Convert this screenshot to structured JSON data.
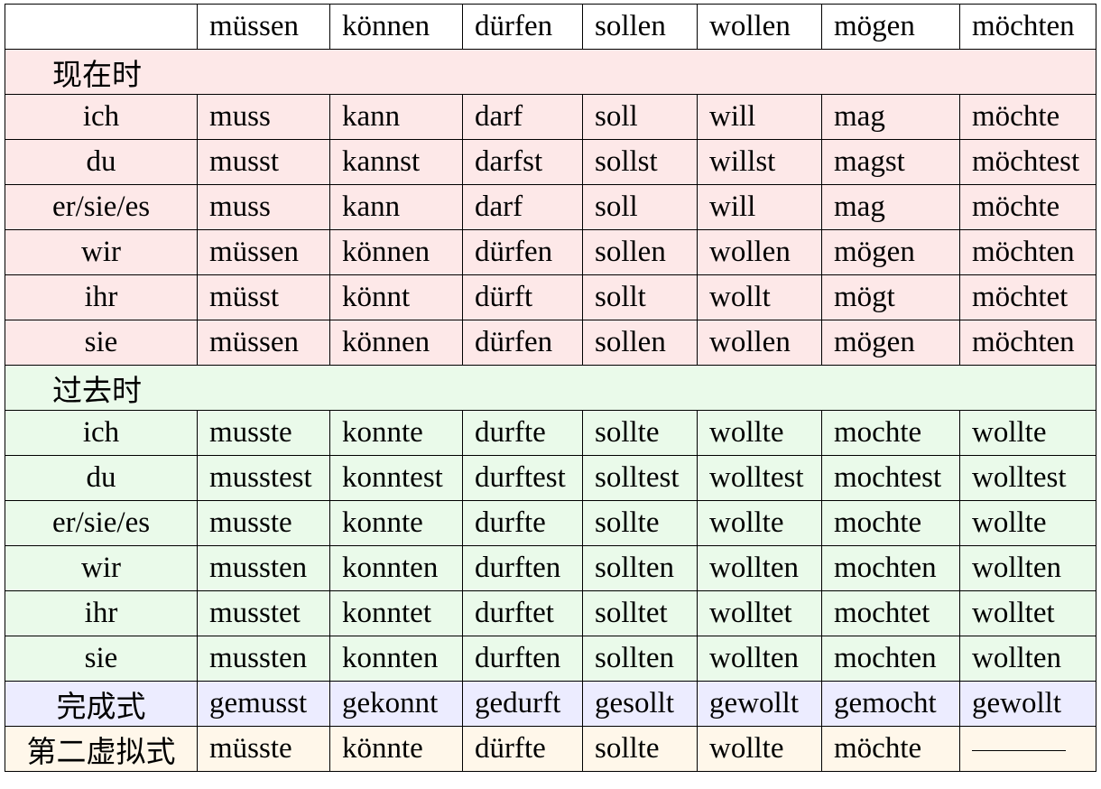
{
  "header": {
    "corner": "",
    "verbs": [
      "müssen",
      "können",
      "dürfen",
      "sollen",
      "wollen",
      "mögen",
      "möchten"
    ]
  },
  "present": {
    "label": "现在时",
    "rows": [
      {
        "pronoun": "ich",
        "forms": [
          "muss",
          "kann",
          "darf",
          "soll",
          "will",
          "mag",
          "möchte"
        ]
      },
      {
        "pronoun": "du",
        "forms": [
          "musst",
          "kannst",
          "darfst",
          "sollst",
          "willst",
          "magst",
          "möchtest"
        ]
      },
      {
        "pronoun": "er/sie/es",
        "forms": [
          "muss",
          "kann",
          "darf",
          "soll",
          "will",
          "mag",
          "möchte"
        ]
      },
      {
        "pronoun": "wir",
        "forms": [
          "müssen",
          "können",
          "dürfen",
          "sollen",
          "wollen",
          "mögen",
          "möchten"
        ]
      },
      {
        "pronoun": "ihr",
        "forms": [
          "müsst",
          "könnt",
          "dürft",
          "sollt",
          "wollt",
          "mögt",
          "möchtet"
        ]
      },
      {
        "pronoun": "sie",
        "forms": [
          "müssen",
          "können",
          "dürfen",
          "sollen",
          "wollen",
          "mögen",
          "möchten"
        ]
      }
    ]
  },
  "past": {
    "label": "过去时",
    "rows": [
      {
        "pronoun": "ich",
        "forms": [
          "musste",
          "konnte",
          "durfte",
          "sollte",
          "wollte",
          "mochte",
          "wollte"
        ]
      },
      {
        "pronoun": "du",
        "forms": [
          "musstest",
          "konntest",
          "durftest",
          "solltest",
          "wolltest",
          "mochtest",
          "wolltest"
        ]
      },
      {
        "pronoun": "er/sie/es",
        "forms": [
          "musste",
          "konnte",
          "durfte",
          "sollte",
          "wollte",
          "mochte",
          "wollte"
        ]
      },
      {
        "pronoun": "wir",
        "forms": [
          "mussten",
          "konnten",
          "durften",
          "sollten",
          "wollten",
          "mochten",
          "wollten"
        ]
      },
      {
        "pronoun": "ihr",
        "forms": [
          "musstet",
          "konntet",
          "durftet",
          "solltet",
          "wolltet",
          "mochtet",
          "wolltet"
        ]
      },
      {
        "pronoun": "sie",
        "forms": [
          "mussten",
          "konnten",
          "durften",
          "sollten",
          "wollten",
          "mochten",
          "wollten"
        ]
      }
    ]
  },
  "perfect": {
    "label": "完成式",
    "forms": [
      "gemusst",
      "gekonnt",
      "gedurft",
      "gesollt",
      "gewollt",
      "gemocht",
      "gewollt"
    ]
  },
  "subjunctive": {
    "label": "第二虚拟式",
    "forms": [
      "müsste",
      "könnte",
      "dürfte",
      "sollte",
      "wollte",
      "möchte",
      ""
    ]
  },
  "colors": {
    "present_bg": "#fde8e8",
    "past_bg": "#eafaea",
    "perfect_bg": "#ececff",
    "subjunctive_bg": "#fff7ea",
    "border": "#000000"
  }
}
